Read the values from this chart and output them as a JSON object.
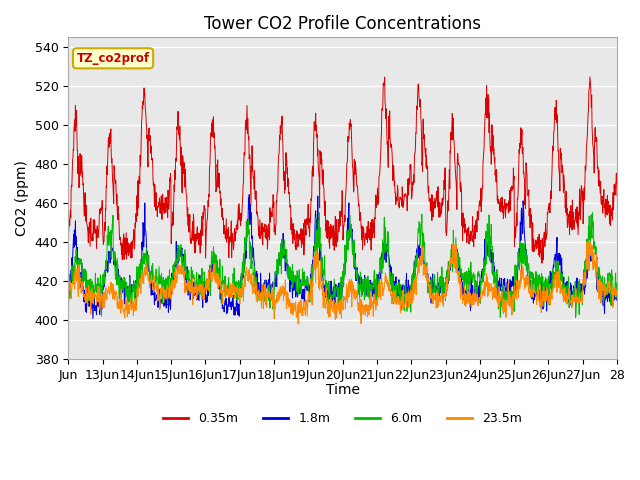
{
  "title": "Tower CO2 Profile Concentrations",
  "xlabel": "Time",
  "ylabel": "CO2 (ppm)",
  "ylim": [
    380,
    545
  ],
  "yticks": [
    380,
    400,
    420,
    440,
    460,
    480,
    500,
    520,
    540
  ],
  "background_color": "#e8e8e8",
  "legend_label": "TZ_co2prof",
  "legend_box_color": "#ffffcc",
  "legend_box_edge": "#ccaa00",
  "series": [
    {
      "label": "0.35m",
      "color": "#dd0000"
    },
    {
      "label": "1.8m",
      "color": "#0000dd"
    },
    {
      "label": "6.0m",
      "color": "#00bb00"
    },
    {
      "label": "23.5m",
      "color": "#ff8800"
    }
  ],
  "title_fontsize": 12,
  "axis_label_fontsize": 10,
  "tick_fontsize": 9,
  "n_days": 16,
  "n_per_day": 96,
  "x_start_day": 12,
  "xtick_positions": [
    0,
    1,
    2,
    3,
    4,
    5,
    6,
    7,
    8,
    9,
    10,
    11,
    12,
    13,
    14,
    15,
    16
  ],
  "xtick_labels": [
    "Jun",
    "13Jun",
    "14Jun",
    "15Jun",
    "16Jun",
    "17Jun",
    "18Jun",
    "19Jun",
    "20Jun",
    "21Jun",
    "22Jun",
    "23Jun",
    "24Jun",
    "25Jun",
    "26Jun",
    "27Jun",
    "28"
  ]
}
